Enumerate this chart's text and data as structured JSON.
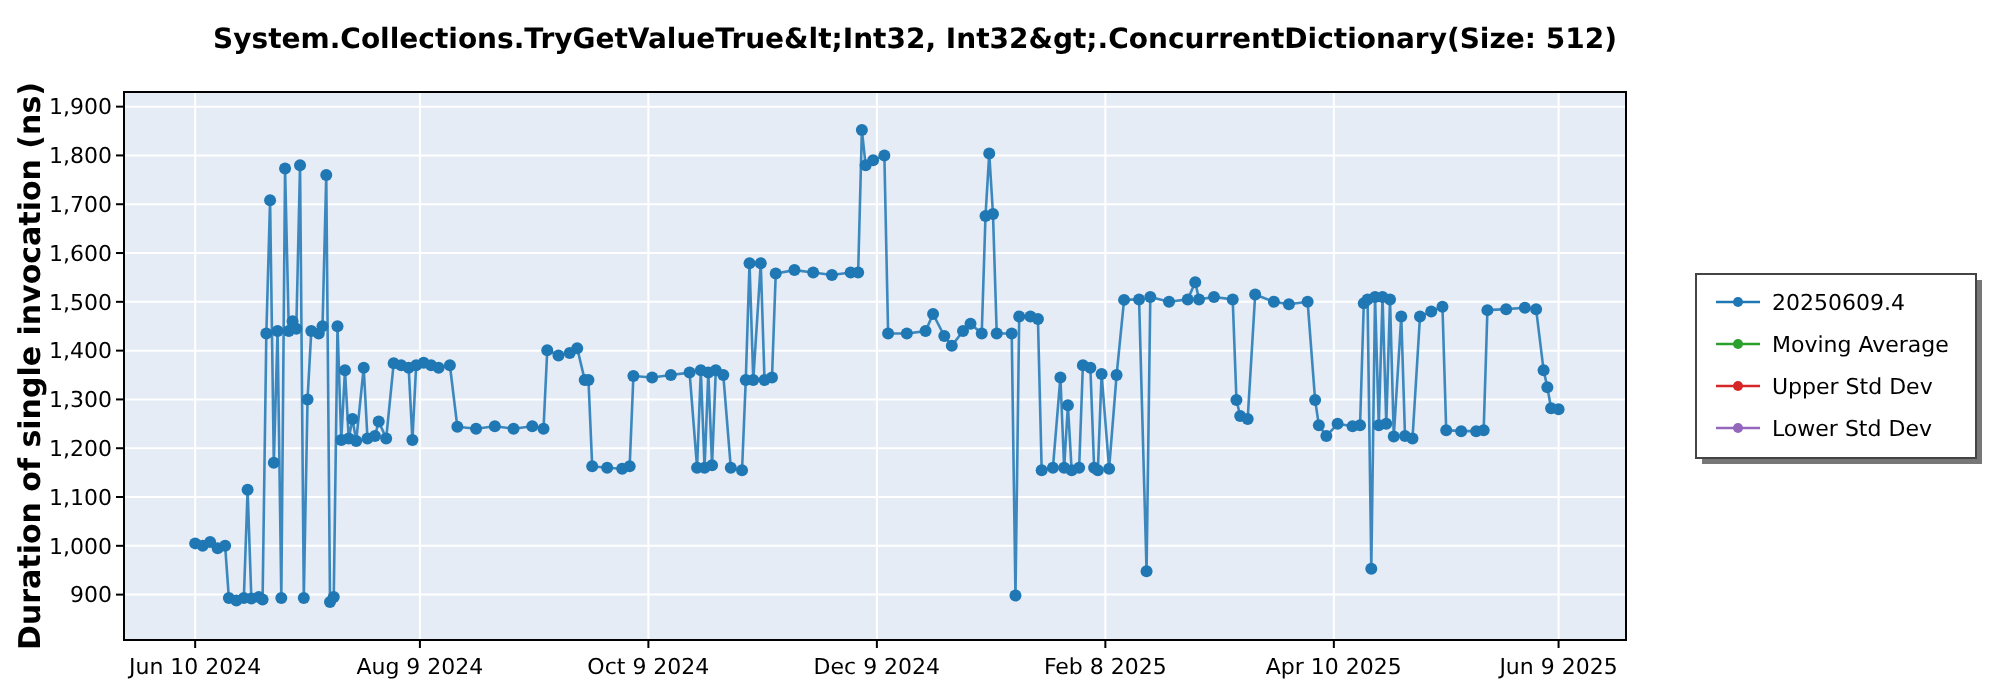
{
  "chart_data": {
    "type": "line",
    "title": "System.Collections.TryGetValueTrue&lt;Int32, Int32&gt;.ConcurrentDictionary(Size: 512)",
    "ylabel": "Duration of single invocation (ns)",
    "x": [
      "2024-06-10",
      "2024-06-12",
      "2024-06-14",
      "2024-06-16",
      "2024-06-18",
      "2024-06-19",
      "2024-06-21",
      "2024-06-23",
      "2024-06-24",
      "2024-06-25",
      "2024-06-27",
      "2024-06-28",
      "2024-06-29",
      "2024-06-30",
      "2024-07-01",
      "2024-07-02",
      "2024-07-03",
      "2024-07-04",
      "2024-07-05",
      "2024-07-06",
      "2024-07-07",
      "2024-07-08",
      "2024-07-09",
      "2024-07-10",
      "2024-07-11",
      "2024-07-13",
      "2024-07-14",
      "2024-07-15",
      "2024-07-16",
      "2024-07-17",
      "2024-07-18",
      "2024-07-19",
      "2024-07-20",
      "2024-07-21",
      "2024-07-22",
      "2024-07-23",
      "2024-07-25",
      "2024-07-26",
      "2024-07-28",
      "2024-07-29",
      "2024-07-31",
      "2024-08-02",
      "2024-08-04",
      "2024-08-06",
      "2024-08-07",
      "2024-08-08",
      "2024-08-10",
      "2024-08-12",
      "2024-08-14",
      "2024-08-17",
      "2024-08-19",
      "2024-08-24",
      "2024-08-29",
      "2024-09-03",
      "2024-09-08",
      "2024-09-11",
      "2024-09-12",
      "2024-09-15",
      "2024-09-18",
      "2024-09-20",
      "2024-09-22",
      "2024-09-23",
      "2024-09-24",
      "2024-09-28",
      "2024-10-02",
      "2024-10-04",
      "2024-10-05",
      "2024-10-10",
      "2024-10-15",
      "2024-10-20",
      "2024-10-22",
      "2024-10-23",
      "2024-10-24",
      "2024-10-25",
      "2024-10-26",
      "2024-10-27",
      "2024-10-29",
      "2024-10-31",
      "2024-11-03",
      "2024-11-04",
      "2024-11-05",
      "2024-11-06",
      "2024-11-08",
      "2024-11-09",
      "2024-11-11",
      "2024-11-12",
      "2024-11-17",
      "2024-11-22",
      "2024-11-27",
      "2024-12-02",
      "2024-12-04",
      "2024-12-05",
      "2024-12-06",
      "2024-12-08",
      "2024-12-11",
      "2024-12-12",
      "2024-12-17",
      "2024-12-22",
      "2024-12-24",
      "2024-12-27",
      "2024-12-29",
      "2025-01-01",
      "2025-01-03",
      "2025-01-06",
      "2025-01-07",
      "2025-01-08",
      "2025-01-09",
      "2025-01-10",
      "2025-01-14",
      "2025-01-15",
      "2025-01-16",
      "2025-01-19",
      "2025-01-21",
      "2025-01-22",
      "2025-01-25",
      "2025-01-27",
      "2025-01-28",
      "2025-01-29",
      "2025-01-30",
      "2025-02-01",
      "2025-02-02",
      "2025-02-04",
      "2025-02-05",
      "2025-02-06",
      "2025-02-07",
      "2025-02-09",
      "2025-02-11",
      "2025-02-13",
      "2025-02-17",
      "2025-02-19",
      "2025-02-20",
      "2025-02-25",
      "2025-03-02",
      "2025-03-04",
      "2025-03-05",
      "2025-03-09",
      "2025-03-14",
      "2025-03-15",
      "2025-03-16",
      "2025-03-18",
      "2025-03-20",
      "2025-03-25",
      "2025-03-29",
      "2025-04-03",
      "2025-04-05",
      "2025-04-06",
      "2025-04-08",
      "2025-04-11",
      "2025-04-15",
      "2025-04-17",
      "2025-04-18",
      "2025-04-19",
      "2025-04-20",
      "2025-04-21",
      "2025-04-22",
      "2025-04-23",
      "2025-04-24",
      "2025-04-25",
      "2025-04-26",
      "2025-04-28",
      "2025-04-29",
      "2025-05-01",
      "2025-05-03",
      "2025-05-06",
      "2025-05-09",
      "2025-05-10",
      "2025-05-14",
      "2025-05-18",
      "2025-05-20",
      "2025-05-21",
      "2025-05-26",
      "2025-05-31",
      "2025-06-03",
      "2025-06-05",
      "2025-06-06",
      "2025-06-07",
      "2025-06-09"
    ],
    "series": [
      {
        "name": "20250609.4",
        "color": "#1f77b4",
        "values": [
          1005,
          1000,
          1008,
          995,
          1000,
          893,
          888,
          893,
          1115,
          892,
          895,
          890,
          1435,
          1708,
          1170,
          1440,
          893,
          1773,
          1440,
          1460,
          1445,
          1780,
          893,
          1300,
          1440,
          1435,
          1450,
          1760,
          885,
          895,
          1450,
          1217,
          1360,
          1220,
          1260,
          1215,
          1365,
          1220,
          1225,
          1255,
          1220,
          1374,
          1370,
          1365,
          1217,
          1370,
          1375,
          1370,
          1365,
          1370,
          1244,
          1240,
          1245,
          1240,
          1245,
          1240,
          1401,
          1390,
          1395,
          1405,
          1340,
          1340,
          1163,
          1160,
          1158,
          1163,
          1348,
          1345,
          1350,
          1355,
          1160,
          1360,
          1160,
          1355,
          1165,
          1360,
          1350,
          1160,
          1155,
          1340,
          1579,
          1340,
          1579,
          1340,
          1345,
          1558,
          1565,
          1560,
          1555,
          1560,
          1560,
          1852,
          1780,
          1790,
          1800,
          1435,
          1435,
          1440,
          1475,
          1430,
          1410,
          1440,
          1455,
          1435,
          1676,
          1804,
          1680,
          1435,
          1435,
          898,
          1470,
          1470,
          1465,
          1155,
          1160,
          1345,
          1160,
          1288,
          1155,
          1160,
          1370,
          1365,
          1160,
          1155,
          1352,
          1158,
          1350,
          1504,
          1505,
          948,
          1510,
          1500,
          1505,
          1540,
          1505,
          1510,
          1505,
          1299,
          1266,
          1260,
          1515,
          1500,
          1495,
          1500,
          1299,
          1247,
          1225,
          1250,
          1245,
          1247,
          1497,
          1505,
          953,
          1510,
          1247,
          1510,
          1250,
          1505,
          1224,
          1470,
          1225,
          1220,
          1470,
          1480,
          1490,
          1237,
          1235,
          1235,
          1237,
          1483,
          1485,
          1488,
          1485,
          1360,
          1325,
          1282,
          1280
        ]
      },
      {
        "name": "Moving Average",
        "color": "#2ca02c",
        "values": [
          null,
          null,
          null,
          null,
          null,
          null,
          null,
          null,
          null,
          null,
          null,
          null,
          null,
          null,
          null,
          null,
          null,
          null,
          null,
          null,
          null,
          null,
          null,
          null,
          null,
          null,
          null,
          null,
          null,
          null,
          null,
          null,
          null,
          null,
          null,
          null,
          null,
          null,
          null,
          null,
          null,
          null,
          null,
          null,
          null,
          null,
          null,
          null,
          null,
          null,
          null,
          null,
          null,
          null,
          null,
          null,
          null,
          null,
          null,
          null,
          null,
          null,
          null,
          null,
          null,
          null,
          null,
          null,
          null,
          null,
          null,
          null,
          null,
          null,
          null,
          null,
          null,
          null,
          null,
          null,
          null,
          null,
          null,
          null,
          null,
          null,
          null,
          null,
          null,
          null,
          null,
          null,
          null,
          null,
          null,
          null,
          null,
          null,
          null,
          null,
          null,
          null,
          null,
          null,
          null,
          null,
          null,
          null,
          null,
          null,
          null,
          null,
          null,
          null,
          null,
          null,
          null,
          null,
          null,
          null,
          null,
          null,
          null,
          null,
          null,
          null,
          null,
          null,
          null,
          null,
          null,
          null,
          null,
          null,
          null,
          null,
          null,
          null,
          null,
          null,
          null,
          null,
          null,
          null,
          null,
          null,
          null,
          null,
          null,
          null,
          null,
          null,
          null,
          null,
          null,
          null,
          null,
          null,
          null,
          null,
          null,
          null,
          null,
          null,
          null,
          null,
          null,
          null,
          null,
          null,
          null,
          null,
          null,
          null,
          null,
          null,
          null
        ]
      },
      {
        "name": "Upper Std Dev",
        "color": "#d62728",
        "values": [
          null,
          null,
          null,
          null,
          null,
          null,
          null,
          null,
          null,
          null,
          null,
          null,
          null,
          null,
          null,
          null,
          null,
          null,
          null,
          null,
          null,
          null,
          null,
          null,
          null,
          null,
          null,
          null,
          null,
          null,
          null,
          null,
          null,
          null,
          null,
          null,
          null,
          null,
          null,
          null,
          null,
          null,
          null,
          null,
          null,
          null,
          null,
          null,
          null,
          null,
          null,
          null,
          null,
          null,
          null,
          null,
          null,
          null,
          null,
          null,
          null,
          null,
          null,
          null,
          null,
          null,
          null,
          null,
          null,
          null,
          null,
          null,
          null,
          null,
          null,
          null,
          null,
          null,
          null,
          null,
          null,
          null,
          null,
          null,
          null,
          null,
          null,
          null,
          null,
          null,
          null,
          null,
          null,
          null,
          null,
          null,
          null,
          null,
          null,
          null,
          null,
          null,
          null,
          null,
          null,
          null,
          null,
          null,
          null,
          null,
          null,
          null,
          null,
          null,
          null,
          null,
          null,
          null,
          null,
          null,
          null,
          null,
          null,
          null,
          null,
          null,
          null,
          null,
          null,
          null,
          null,
          null,
          null,
          null,
          null,
          null,
          null,
          null,
          null,
          null,
          null,
          null,
          null,
          null,
          null,
          null,
          null,
          null,
          null,
          null,
          null,
          null,
          null,
          null,
          null,
          null,
          null,
          null,
          null,
          null,
          null,
          null,
          null,
          null,
          null,
          null,
          null,
          null,
          null,
          null,
          null,
          null,
          null,
          null,
          null,
          null,
          null
        ]
      },
      {
        "name": "Lower Std Dev",
        "color": "#9467bd",
        "values": [
          null,
          null,
          null,
          null,
          null,
          null,
          null,
          null,
          null,
          null,
          null,
          null,
          null,
          null,
          null,
          null,
          null,
          null,
          null,
          null,
          null,
          null,
          null,
          null,
          null,
          null,
          null,
          null,
          null,
          null,
          null,
          null,
          null,
          null,
          null,
          null,
          null,
          null,
          null,
          null,
          null,
          null,
          null,
          null,
          null,
          null,
          null,
          null,
          null,
          null,
          null,
          null,
          null,
          null,
          null,
          null,
          null,
          null,
          null,
          null,
          null,
          null,
          null,
          null,
          null,
          null,
          null,
          null,
          null,
          null,
          null,
          null,
          null,
          null,
          null,
          null,
          null,
          null,
          null,
          null,
          null,
          null,
          null,
          null,
          null,
          null,
          null,
          null,
          null,
          null,
          null,
          null,
          null,
          null,
          null,
          null,
          null,
          null,
          null,
          null,
          null,
          null,
          null,
          null,
          null,
          null,
          null,
          null,
          null,
          null,
          null,
          null,
          null,
          null,
          null,
          null,
          null,
          null,
          null,
          null,
          null,
          null,
          null,
          null,
          null,
          null,
          null,
          null,
          null,
          null,
          null,
          null,
          null,
          null,
          null,
          null,
          null,
          null,
          null,
          null,
          null,
          null,
          null,
          null,
          null,
          null,
          null,
          null,
          null,
          null,
          null,
          null,
          null,
          null,
          null,
          null,
          null,
          null,
          null,
          null,
          null,
          null,
          null,
          null,
          null,
          null,
          null,
          null,
          null,
          null,
          null,
          null,
          null,
          null,
          null,
          null,
          null
        ]
      }
    ],
    "xlim": [
      "2024-05-22",
      "2025-06-27"
    ],
    "xticks": [
      {
        "value": "2024-06-10",
        "label": "Jun 10 2024"
      },
      {
        "value": "2024-08-09",
        "label": "Aug 9 2024"
      },
      {
        "value": "2024-10-09",
        "label": "Oct 9 2024"
      },
      {
        "value": "2024-12-09",
        "label": "Dec 9 2024"
      },
      {
        "value": "2025-02-08",
        "label": "Feb 8 2025"
      },
      {
        "value": "2025-04-10",
        "label": "Apr 10 2025"
      },
      {
        "value": "2025-06-09",
        "label": "Jun 9 2025"
      }
    ],
    "ylim": [
      807,
      1930
    ],
    "yticks": [
      900,
      {
        "value": 1000,
        "label": "1,000"
      },
      {
        "value": 1100,
        "label": "1,100"
      },
      {
        "value": 1200,
        "label": "1,200"
      },
      {
        "value": 1300,
        "label": "1,300"
      },
      {
        "value": 1400,
        "label": "1,400"
      },
      {
        "value": 1500,
        "label": "1,500"
      },
      {
        "value": 1600,
        "label": "1,600"
      },
      {
        "value": 1700,
        "label": "1,700"
      },
      {
        "value": 1800,
        "label": "1,800"
      },
      {
        "value": 1900,
        "label": "1,900"
      }
    ],
    "grid": true,
    "legend": "right",
    "marker": "circle",
    "line_style": "solid"
  }
}
